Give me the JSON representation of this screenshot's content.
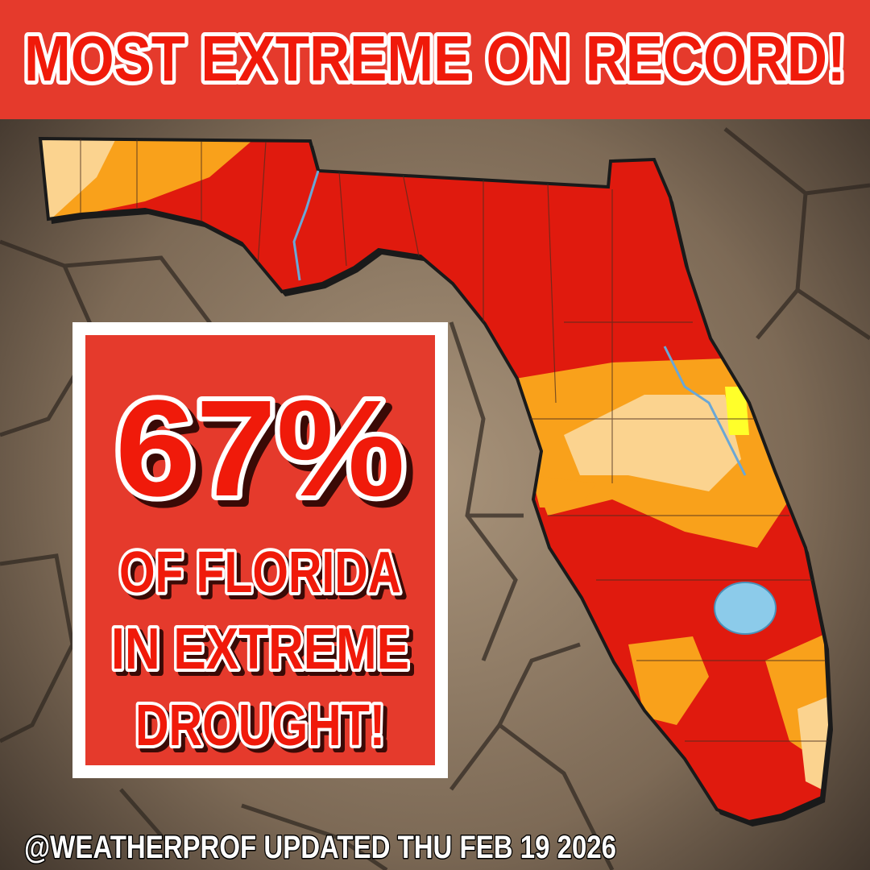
{
  "header": {
    "title": "MOST EXTREME ON RECORD!"
  },
  "callout": {
    "stat": "67%",
    "lines": [
      "OF FLORIDA",
      "IN EXTREME",
      "DROUGHT!"
    ]
  },
  "footer": {
    "credit": "@WEATHERPROF UPDATED THU FEB 19 2026"
  }
}
